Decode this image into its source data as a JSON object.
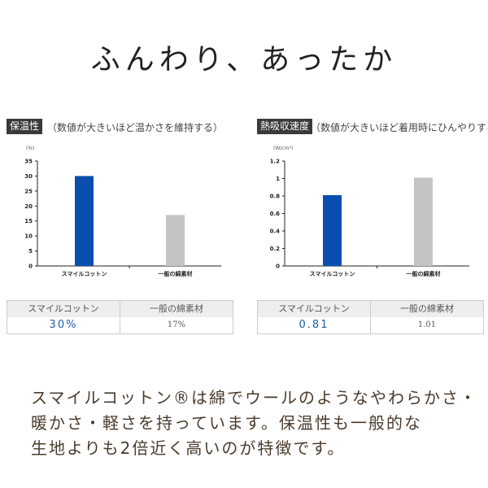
{
  "headline": "ふんわり、あったか",
  "chart_data": [
    {
      "type": "bar",
      "tag": "保温性",
      "note": "（数値が大きいほど温かさを維持する）",
      "ylabel": "(%)",
      "ylim": [
        0,
        35
      ],
      "yticks": [
        0,
        5,
        10,
        15,
        20,
        25,
        30,
        35
      ],
      "categories": [
        "スマイルコットン",
        "一般の綿素材"
      ],
      "values": [
        30,
        17
      ],
      "colors": [
        "#0a4fb0",
        "#c4c4c4"
      ],
      "table": {
        "headers": [
          "スマイルコットン",
          "一般の綿素材"
        ],
        "values": [
          "30%",
          "17%"
        ]
      }
    },
    {
      "type": "bar",
      "tag": "熱吸収速度",
      "note": "（数値が大きいほど着用時にひんやりする）",
      "ylabel": "(W/cm²)",
      "ylim": [
        0,
        1.2
      ],
      "yticks": [
        0,
        0.2,
        0.4,
        0.6,
        0.8,
        1,
        1.2
      ],
      "categories": [
        "スマイルコットン",
        "一般の綿素材"
      ],
      "values": [
        0.81,
        1.01
      ],
      "colors": [
        "#0a4fb0",
        "#c4c4c4"
      ],
      "table": {
        "headers": [
          "スマイルコットン",
          "一般の綿素材"
        ],
        "values": [
          "0.81",
          "1.01"
        ]
      }
    }
  ],
  "body": [
    "スマイルコットン®は綿でウールのようなやわらかさ・",
    "暖かさ・軽さを持っています。保温性も一般的な",
    "生地よりも2倍近く高いのが特徴です。"
  ]
}
